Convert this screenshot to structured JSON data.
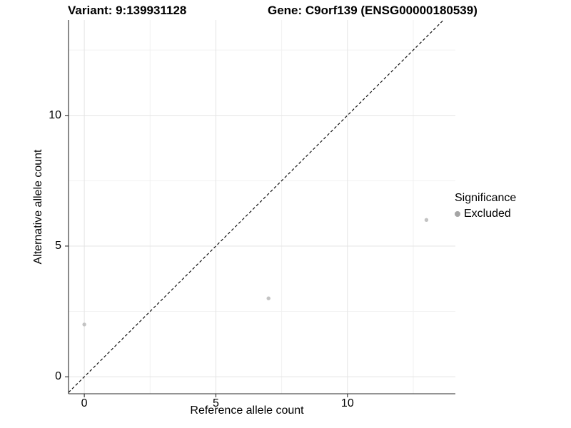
{
  "titles": {
    "variant": "Variant: 9:139931128",
    "gene": "Gene: C9orf139 (ENSG00000180539)"
  },
  "axes": {
    "x_label": "Reference allele count",
    "y_label": "Alternative allele count"
  },
  "legend": {
    "title": "Significance",
    "items": [
      {
        "label": "Excluded",
        "color": "#a5a5a5"
      }
    ]
  },
  "colors": {
    "point_fill": "#c3c3c3",
    "grid_major": "#e4e4e4",
    "grid_minor": "#f1f1f1",
    "axis_line": "#2a2a2a",
    "identity_line": "#111111",
    "background": "#ffffff"
  },
  "chart_data": {
    "type": "scatter",
    "title": "Variant: 9:139931128 | Gene: C9orf139 (ENSG00000180539)",
    "xlabel": "Reference allele count",
    "ylabel": "Alternative allele count",
    "series": [
      {
        "name": "Excluded",
        "points": [
          {
            "x": 0,
            "y": 2
          },
          {
            "x": 7,
            "y": 3
          },
          {
            "x": 13,
            "y": 6
          }
        ]
      }
    ],
    "x_ticks": [
      0,
      5,
      10
    ],
    "y_ticks": [
      0,
      5,
      10
    ],
    "x_minor_ticks": [
      2.5,
      7.5,
      12.5
    ],
    "y_minor_ticks": [
      2.5,
      7.5,
      12.5
    ],
    "xlim": [
      -0.6,
      14.1
    ],
    "ylim": [
      -0.65,
      13.65
    ],
    "reference_line": {
      "type": "identity",
      "slope": 1,
      "intercept": 0,
      "style": "dashed"
    },
    "grid": true,
    "legend_position": "right"
  }
}
